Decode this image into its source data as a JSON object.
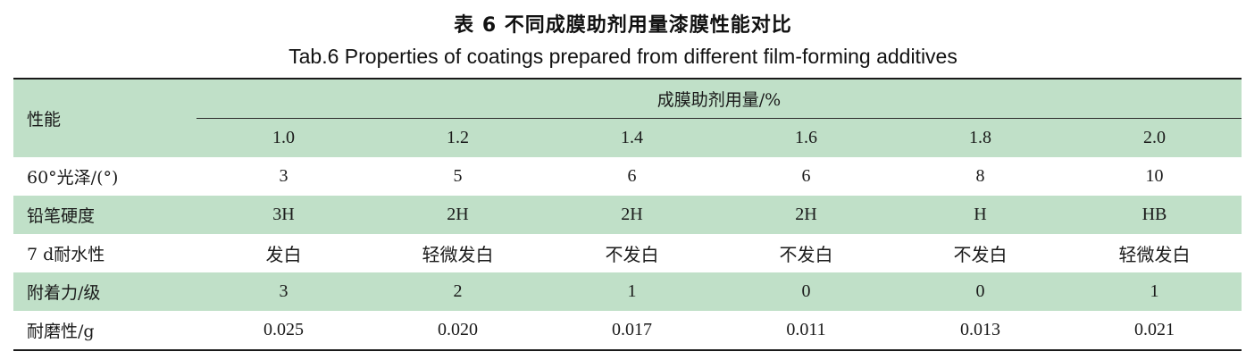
{
  "caption": {
    "cn": "表 6 不同成膜助剂用量漆膜性能对比",
    "en": "Tab.6 Properties of coatings prepared from different film-forming additives"
  },
  "table": {
    "row_header_label": "性能",
    "group_header": "成膜助剂用量/%",
    "columns": [
      "1.0",
      "1.2",
      "1.4",
      "1.6",
      "1.8",
      "2.0"
    ],
    "rows": [
      {
        "label": "60°光泽/(°)",
        "values": [
          "3",
          "5",
          "6",
          "6",
          "8",
          "10"
        ]
      },
      {
        "label": "铅笔硬度",
        "values": [
          "3H",
          "2H",
          "2H",
          "2H",
          "H",
          "HB"
        ]
      },
      {
        "label": "7 d耐水性",
        "values": [
          "发白",
          "轻微发白",
          "不发白",
          "不发白",
          "不发白",
          "轻微发白"
        ]
      },
      {
        "label": "附着力/级",
        "values": [
          "3",
          "2",
          "1",
          "0",
          "0",
          "1"
        ]
      },
      {
        "label": "耐磨性/g",
        "values": [
          "0.025",
          "0.020",
          "0.017",
          "0.011",
          "0.013",
          "0.021"
        ]
      }
    ]
  },
  "colors": {
    "band_green": "#c0e0c8",
    "rule": "#1a1a1a"
  }
}
